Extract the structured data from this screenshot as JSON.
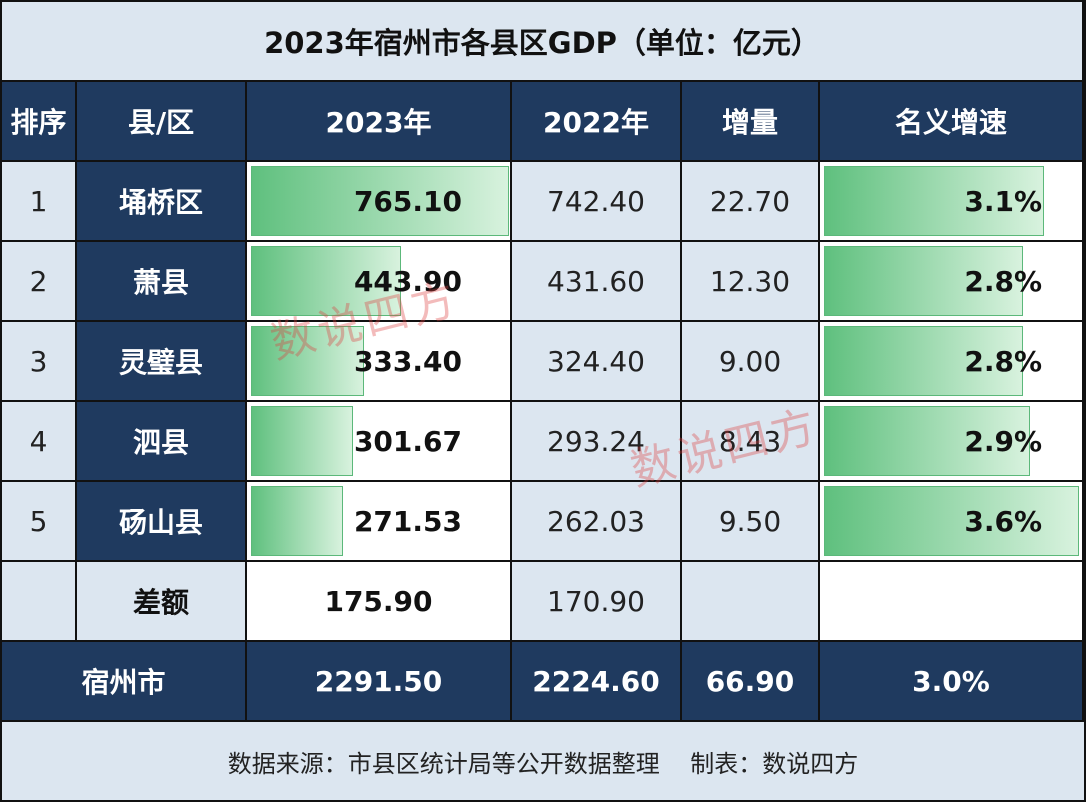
{
  "title": "2023年宿州市各县区GDP（单位：亿元）",
  "headers": [
    "排序",
    "县/区",
    "2023年",
    "2022年",
    "增量",
    "名义增速"
  ],
  "chart_data": {
    "type": "table",
    "title": "2023年宿州市各县区GDP（单位：亿元）",
    "columns": [
      "排序",
      "县/区",
      "2023年",
      "2022年",
      "增量",
      "名义增速"
    ],
    "rows": [
      {
        "rank": "1",
        "name": "埇桥区",
        "gdp2023": "765.10",
        "gdp2022": "742.40",
        "increase": "22.70",
        "growth": "3.1%",
        "gdp2023_value": 765.1,
        "growth_value": 3.1
      },
      {
        "rank": "2",
        "name": "萧县",
        "gdp2023": "443.90",
        "gdp2022": "431.60",
        "increase": "12.30",
        "growth": "2.8%",
        "gdp2023_value": 443.9,
        "growth_value": 2.8
      },
      {
        "rank": "3",
        "name": "灵璧县",
        "gdp2023": "333.40",
        "gdp2022": "324.40",
        "increase": "9.00",
        "growth": "2.8%",
        "gdp2023_value": 333.4,
        "growth_value": 2.8
      },
      {
        "rank": "4",
        "name": "泗县",
        "gdp2023": "301.67",
        "gdp2022": "293.24",
        "increase": "8.43",
        "growth": "2.9%",
        "gdp2023_value": 301.67,
        "growth_value": 2.9
      },
      {
        "rank": "5",
        "name": "砀山县",
        "gdp2023": "271.53",
        "gdp2022": "262.03",
        "increase": "9.50",
        "growth": "3.6%",
        "gdp2023_value": 271.53,
        "growth_value": 3.6
      }
    ],
    "difference": {
      "label": "差额",
      "gdp2023": "175.90",
      "gdp2022": "170.90"
    },
    "total": {
      "name": "宿州市",
      "gdp2023": "2291.50",
      "gdp2022": "2224.60",
      "increase": "66.90",
      "growth": "3.0%"
    }
  },
  "footer": "数据来源：市县区统计局等公开数据整理    制表：数说四方",
  "watermark": "数说四方",
  "colors": {
    "header_bg": "#1f3a5f",
    "light_bg": "#dce6f0",
    "bar_green": "#5fc07e",
    "watermark": "#dc3c3c"
  }
}
